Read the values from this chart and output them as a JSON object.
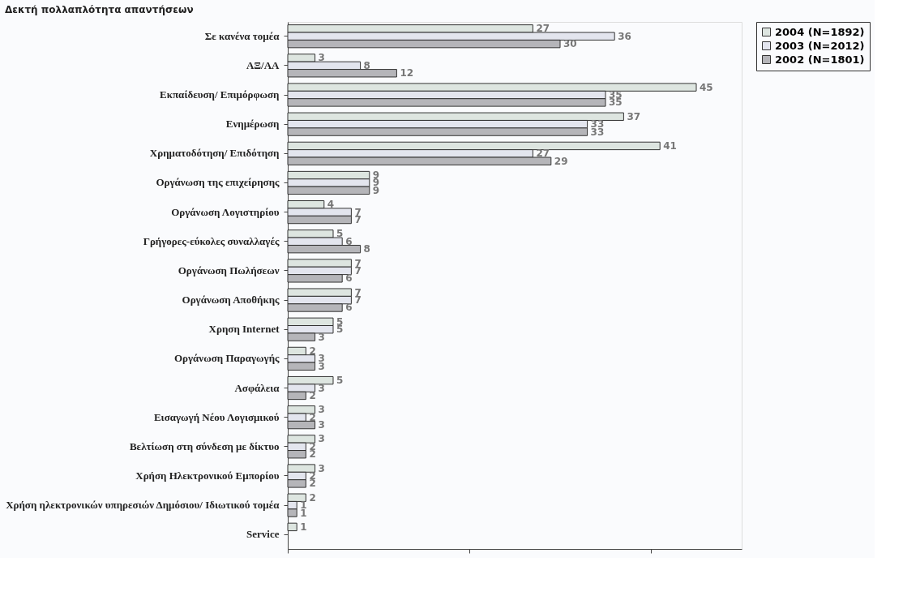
{
  "chart_data": {
    "type": "bar",
    "orientation": "horizontal",
    "title": "Δεκτή πολλαπλότητα απαντήσεων",
    "categories": [
      "Σε κανένα τομέα",
      "ΑΞ/ΑΑ",
      "Εκπαίδευση/ Επιμόρφωση",
      "Ενημέρωση",
      "Χρηματοδότηση/ Επιδότηση",
      "Οργάνωση της επιχείρησης",
      "Οργάνωση Λογιστηρίου",
      "Γρήγορες-εύκολες συναλλαγές",
      "Οργάνωση Πωλήσεων",
      "Οργάνωση Αποθήκης",
      "Χρηση Internet",
      "Οργάνωση Παραγωγής",
      "Ασφάλεια",
      "Εισαγωγή Νέου Λογισμικού",
      "Βελτίωση στη σύνδεση με δίκτυο",
      "Χρήση Ηλεκτρονικού Εμπορίου",
      "Χρήση ηλεκτρονικών υπηρεσιών Δημόσιου/ Ιδιωτικού τομέα",
      "Service"
    ],
    "series": [
      {
        "name": "2004 (N=1892)",
        "color": "#dde5e0",
        "values": [
          27,
          3,
          45,
          37,
          41,
          9,
          4,
          5,
          7,
          7,
          5,
          2,
          5,
          3,
          3,
          3,
          2,
          1
        ]
      },
      {
        "name": "2003 (N=2012)",
        "color": "#e3e5ee",
        "values": [
          36,
          8,
          35,
          33,
          27,
          9,
          7,
          6,
          7,
          7,
          5,
          3,
          3,
          2,
          2,
          2,
          1,
          null
        ]
      },
      {
        "name": "2002 (N=1801)",
        "color": "#b5b5b9",
        "values": [
          30,
          12,
          35,
          33,
          29,
          9,
          7,
          8,
          6,
          6,
          3,
          3,
          2,
          3,
          2,
          2,
          1,
          null
        ]
      }
    ],
    "xlim": [
      0,
      50
    ],
    "xticks": [
      {
        "value": 0,
        "label": null
      },
      {
        "value": 20,
        "label": null
      },
      {
        "value": 40,
        "label": null
      }
    ],
    "tick_labels": "y",
    "data_labels": true,
    "legend": "right",
    "grid": false
  }
}
